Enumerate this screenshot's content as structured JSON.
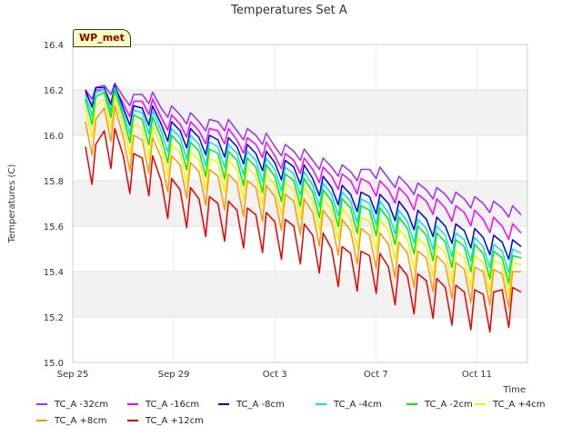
{
  "chart_data": {
    "type": "line",
    "title": "Temperatures Set A",
    "xlabel": "Time",
    "ylabel": "Temperatures (C)",
    "badge": "WP_met",
    "ylim": [
      15.0,
      16.4
    ],
    "yticks": [
      "15.0",
      "15.2",
      "15.4",
      "15.6",
      "15.8",
      "16.0",
      "16.2",
      "16.4"
    ],
    "xlim": [
      "2023-09-25",
      "2023-10-13"
    ],
    "xticks": [
      {
        "label": "Sep 25",
        "date": "2023-09-25"
      },
      {
        "label": "Sep 29",
        "date": "2023-09-29"
      },
      {
        "label": "Oct 3",
        "date": "2023-10-03"
      },
      {
        "label": "Oct 7",
        "date": "2023-10-07"
      },
      {
        "label": "Oct 11",
        "date": "2023-10-11"
      }
    ],
    "grid": true,
    "legend_position": "bottom",
    "series": [
      {
        "name": "TC_A -32cm",
        "color": "#9b30ff",
        "x": [
          "2023-09-25T12:00",
          "2023-09-26T06:00",
          "2023-09-27T00:00",
          "2023-09-27T18:00",
          "2023-09-28T12:00",
          "2023-09-29T06:00",
          "2023-09-30T00:00",
          "2023-09-30T18:00",
          "2023-10-01T12:00",
          "2023-10-02T06:00",
          "2023-10-03T00:00",
          "2023-10-03T18:00",
          "2023-10-04T12:00",
          "2023-10-05T06:00",
          "2023-10-06T00:00",
          "2023-10-06T18:00",
          "2023-10-07T12:00",
          "2023-10-08T06:00",
          "2023-10-09T00:00",
          "2023-10-09T18:00",
          "2023-10-10T12:00",
          "2023-10-11T06:00",
          "2023-10-12T00:00",
          "2023-10-12T18:00"
        ],
        "y": [
          16.2,
          16.22,
          16.17,
          16.18,
          16.12,
          16.09,
          16.06,
          16.06,
          16.02,
          16.0,
          15.95,
          15.93,
          15.89,
          15.86,
          15.84,
          15.85,
          15.81,
          15.78,
          15.76,
          15.74,
          15.72,
          15.7,
          15.68,
          15.65
        ]
      },
      {
        "name": "TC_A -16cm",
        "color": "#ff00ff",
        "x": [
          "2023-09-25T12:00",
          "2023-09-26T06:00",
          "2023-09-27T00:00",
          "2023-09-27T18:00",
          "2023-09-28T12:00",
          "2023-09-29T06:00",
          "2023-09-30T00:00",
          "2023-09-30T18:00",
          "2023-10-01T12:00",
          "2023-10-02T06:00",
          "2023-10-03T00:00",
          "2023-10-03T18:00",
          "2023-10-04T12:00",
          "2023-10-05T06:00",
          "2023-10-06T00:00",
          "2023-10-06T18:00",
          "2023-10-07T12:00",
          "2023-10-08T06:00",
          "2023-10-09T00:00",
          "2023-10-09T18:00",
          "2023-10-10T12:00",
          "2023-10-11T06:00",
          "2023-10-12T00:00",
          "2023-10-12T18:00"
        ],
        "y": [
          16.19,
          16.2,
          16.14,
          16.15,
          16.08,
          16.05,
          16.02,
          16.02,
          15.98,
          15.96,
          15.91,
          15.89,
          15.85,
          15.82,
          15.8,
          15.79,
          15.76,
          15.73,
          15.71,
          15.68,
          15.66,
          15.63,
          15.6,
          15.57
        ]
      },
      {
        "name": "TC_A -8cm",
        "color": "#0000e0",
        "x": [
          "2023-09-25T12:00",
          "2023-09-26T06:00",
          "2023-09-27T00:00",
          "2023-09-27T18:00",
          "2023-09-28T12:00",
          "2023-09-29T06:00",
          "2023-09-30T00:00",
          "2023-09-30T18:00",
          "2023-10-01T12:00",
          "2023-10-02T06:00",
          "2023-10-03T00:00",
          "2023-10-03T18:00",
          "2023-10-04T12:00",
          "2023-10-05T06:00",
          "2023-10-06T00:00",
          "2023-10-06T18:00",
          "2023-10-07T12:00",
          "2023-10-08T06:00",
          "2023-10-09T00:00",
          "2023-10-09T18:00",
          "2023-10-10T12:00",
          "2023-10-11T06:00",
          "2023-10-12T00:00",
          "2023-10-12T18:00"
        ],
        "y": [
          16.2,
          16.21,
          16.12,
          16.12,
          16.05,
          16.02,
          15.99,
          15.98,
          15.95,
          15.92,
          15.88,
          15.86,
          15.81,
          15.77,
          15.74,
          15.73,
          15.7,
          15.66,
          15.63,
          15.6,
          15.58,
          15.55,
          15.53,
          15.51
        ]
      },
      {
        "name": "TC_A -4cm",
        "color": "#00e5e5",
        "x": [
          "2023-09-25T12:00",
          "2023-09-26T06:00",
          "2023-09-27T00:00",
          "2023-09-27T18:00",
          "2023-09-28T12:00",
          "2023-09-29T06:00",
          "2023-09-30T00:00",
          "2023-09-30T18:00",
          "2023-10-01T12:00",
          "2023-10-02T06:00",
          "2023-10-03T00:00",
          "2023-10-03T18:00",
          "2023-10-04T12:00",
          "2023-10-05T06:00",
          "2023-10-06T00:00",
          "2023-10-06T18:00",
          "2023-10-07T12:00",
          "2023-10-08T06:00",
          "2023-10-09T00:00",
          "2023-10-09T18:00",
          "2023-10-10T12:00",
          "2023-10-11T06:00",
          "2023-10-12T00:00",
          "2023-10-12T18:00"
        ],
        "y": [
          16.18,
          16.2,
          16.1,
          16.1,
          16.02,
          15.99,
          15.96,
          15.95,
          15.92,
          15.89,
          15.85,
          15.83,
          15.78,
          15.74,
          15.71,
          15.7,
          15.66,
          15.62,
          15.59,
          15.56,
          15.54,
          15.51,
          15.49,
          15.48
        ]
      },
      {
        "name": "TC_A -2cm",
        "color": "#00ee00",
        "x": [
          "2023-09-25T12:00",
          "2023-09-26T06:00",
          "2023-09-27T00:00",
          "2023-09-27T18:00",
          "2023-09-28T12:00",
          "2023-09-29T06:00",
          "2023-09-30T00:00",
          "2023-09-30T18:00",
          "2023-10-01T12:00",
          "2023-10-02T06:00",
          "2023-10-03T00:00",
          "2023-10-03T18:00",
          "2023-10-04T12:00",
          "2023-10-05T06:00",
          "2023-10-06T00:00",
          "2023-10-06T18:00",
          "2023-10-07T12:00",
          "2023-10-08T06:00",
          "2023-10-09T00:00",
          "2023-10-09T18:00",
          "2023-10-10T12:00",
          "2023-10-11T06:00",
          "2023-10-12T00:00",
          "2023-10-12T18:00"
        ],
        "y": [
          16.16,
          16.19,
          16.08,
          16.07,
          15.99,
          15.96,
          15.93,
          15.92,
          15.89,
          15.86,
          15.82,
          15.8,
          15.75,
          15.71,
          15.68,
          15.67,
          15.63,
          15.59,
          15.56,
          15.53,
          15.51,
          15.48,
          15.46,
          15.46
        ]
      },
      {
        "name": "TC_A +4cm",
        "color": "#ffee00",
        "x": [
          "2023-09-25T12:00",
          "2023-09-26T06:00",
          "2023-09-27T00:00",
          "2023-09-27T18:00",
          "2023-09-28T12:00",
          "2023-09-29T06:00",
          "2023-09-30T00:00",
          "2023-09-30T18:00",
          "2023-10-01T12:00",
          "2023-10-02T06:00",
          "2023-10-03T00:00",
          "2023-10-03T18:00",
          "2023-10-04T12:00",
          "2023-10-05T06:00",
          "2023-10-06T00:00",
          "2023-10-06T18:00",
          "2023-10-07T12:00",
          "2023-10-08T06:00",
          "2023-10-09T00:00",
          "2023-10-09T18:00",
          "2023-10-10T12:00",
          "2023-10-11T06:00",
          "2023-10-12T00:00",
          "2023-10-12T18:00"
        ],
        "y": [
          16.12,
          16.16,
          16.04,
          16.03,
          15.95,
          15.92,
          15.89,
          15.88,
          15.85,
          15.82,
          15.78,
          15.76,
          15.71,
          15.67,
          15.63,
          15.62,
          15.58,
          15.54,
          15.51,
          15.48,
          15.46,
          15.44,
          15.43,
          15.43
        ]
      },
      {
        "name": "TC_A +8cm",
        "color": "#ff9900",
        "x": [
          "2023-09-25T12:00",
          "2023-09-26T06:00",
          "2023-09-27T00:00",
          "2023-09-27T18:00",
          "2023-09-28T12:00",
          "2023-09-29T06:00",
          "2023-09-30T00:00",
          "2023-09-30T18:00",
          "2023-10-01T12:00",
          "2023-10-02T06:00",
          "2023-10-03T00:00",
          "2023-10-03T18:00",
          "2023-10-04T12:00",
          "2023-10-05T06:00",
          "2023-10-06T00:00",
          "2023-10-06T18:00",
          "2023-10-07T12:00",
          "2023-10-08T06:00",
          "2023-10-09T00:00",
          "2023-10-09T18:00",
          "2023-10-10T12:00",
          "2023-10-11T06:00",
          "2023-10-12T00:00",
          "2023-10-12T18:00"
        ],
        "y": [
          16.06,
          16.12,
          15.99,
          15.98,
          15.9,
          15.87,
          15.84,
          15.82,
          15.79,
          15.77,
          15.73,
          15.71,
          15.66,
          15.62,
          15.58,
          15.56,
          15.52,
          15.48,
          15.46,
          15.43,
          15.41,
          15.4,
          15.39,
          15.4
        ]
      },
      {
        "name": "TC_A +12cm",
        "color": "#ee0000",
        "x": [
          "2023-09-25T12:00",
          "2023-09-26T06:00",
          "2023-09-27T00:00",
          "2023-09-27T18:00",
          "2023-09-28T12:00",
          "2023-09-29T06:00",
          "2023-09-30T00:00",
          "2023-09-30T18:00",
          "2023-10-01T12:00",
          "2023-10-02T06:00",
          "2023-10-03T00:00",
          "2023-10-03T18:00",
          "2023-10-04T12:00",
          "2023-10-05T06:00",
          "2023-10-06T00:00",
          "2023-10-06T18:00",
          "2023-10-07T12:00",
          "2023-10-08T06:00",
          "2023-10-09T00:00",
          "2023-10-09T18:00",
          "2023-10-10T12:00",
          "2023-10-11T06:00",
          "2023-10-12T00:00",
          "2023-10-12T18:00"
        ],
        "y": [
          15.95,
          16.02,
          15.91,
          15.9,
          15.8,
          15.76,
          15.72,
          15.7,
          15.67,
          15.65,
          15.62,
          15.6,
          15.56,
          15.5,
          15.48,
          15.47,
          15.42,
          15.38,
          15.36,
          15.33,
          15.31,
          15.3,
          15.32,
          15.31
        ]
      }
    ]
  }
}
